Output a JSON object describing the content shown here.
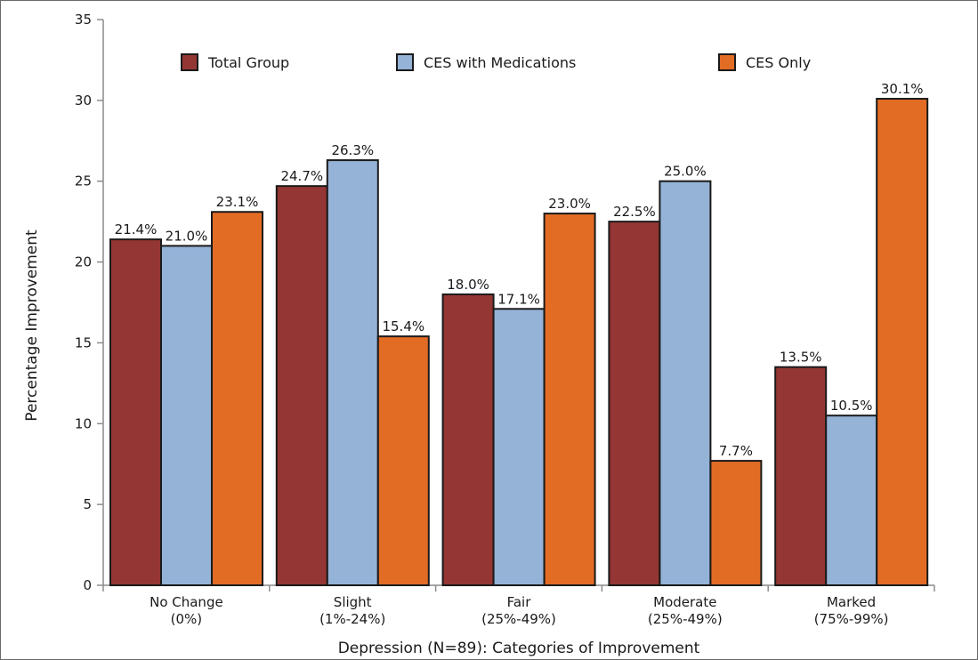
{
  "chart_data": {
    "type": "bar",
    "xlabel": "Depression (N=89): Categories of Improvement",
    "ylabel": "Percentage Improvement",
    "ylim": [
      0,
      35
    ],
    "yticks": [
      0,
      5,
      10,
      15,
      20,
      25,
      30,
      35
    ],
    "grid": false,
    "legend_position": "top",
    "categories": [
      {
        "line1": "No Change",
        "line2": "(0%)"
      },
      {
        "line1": "Slight",
        "line2": "(1%-24%)"
      },
      {
        "line1": "Fair",
        "line2": "(25%-49%)"
      },
      {
        "line1": "Moderate",
        "line2": "(25%-49%)"
      },
      {
        "line1": "Marked",
        "line2": "(75%-99%)"
      }
    ],
    "series": [
      {
        "name": "Total Group",
        "color": "#943634",
        "values": [
          21.4,
          24.7,
          18.0,
          22.5,
          13.5
        ],
        "labels": [
          "21.4%",
          "24.7%",
          "18.0%",
          "22.5%",
          "13.5%"
        ]
      },
      {
        "name": "CES with Medications",
        "color": "#95b3d7",
        "values": [
          21.0,
          26.3,
          17.1,
          25.0,
          10.5
        ],
        "labels": [
          "21.0%",
          "26.3%",
          "17.1%",
          "25.0%",
          "10.5%"
        ]
      },
      {
        "name": "CES Only",
        "color": "#e36c25",
        "values": [
          23.1,
          15.4,
          23.0,
          7.7,
          30.1
        ],
        "labels": [
          "23.1%",
          "15.4%",
          "23.0%",
          "7.7%",
          "30.1%"
        ]
      }
    ]
  }
}
